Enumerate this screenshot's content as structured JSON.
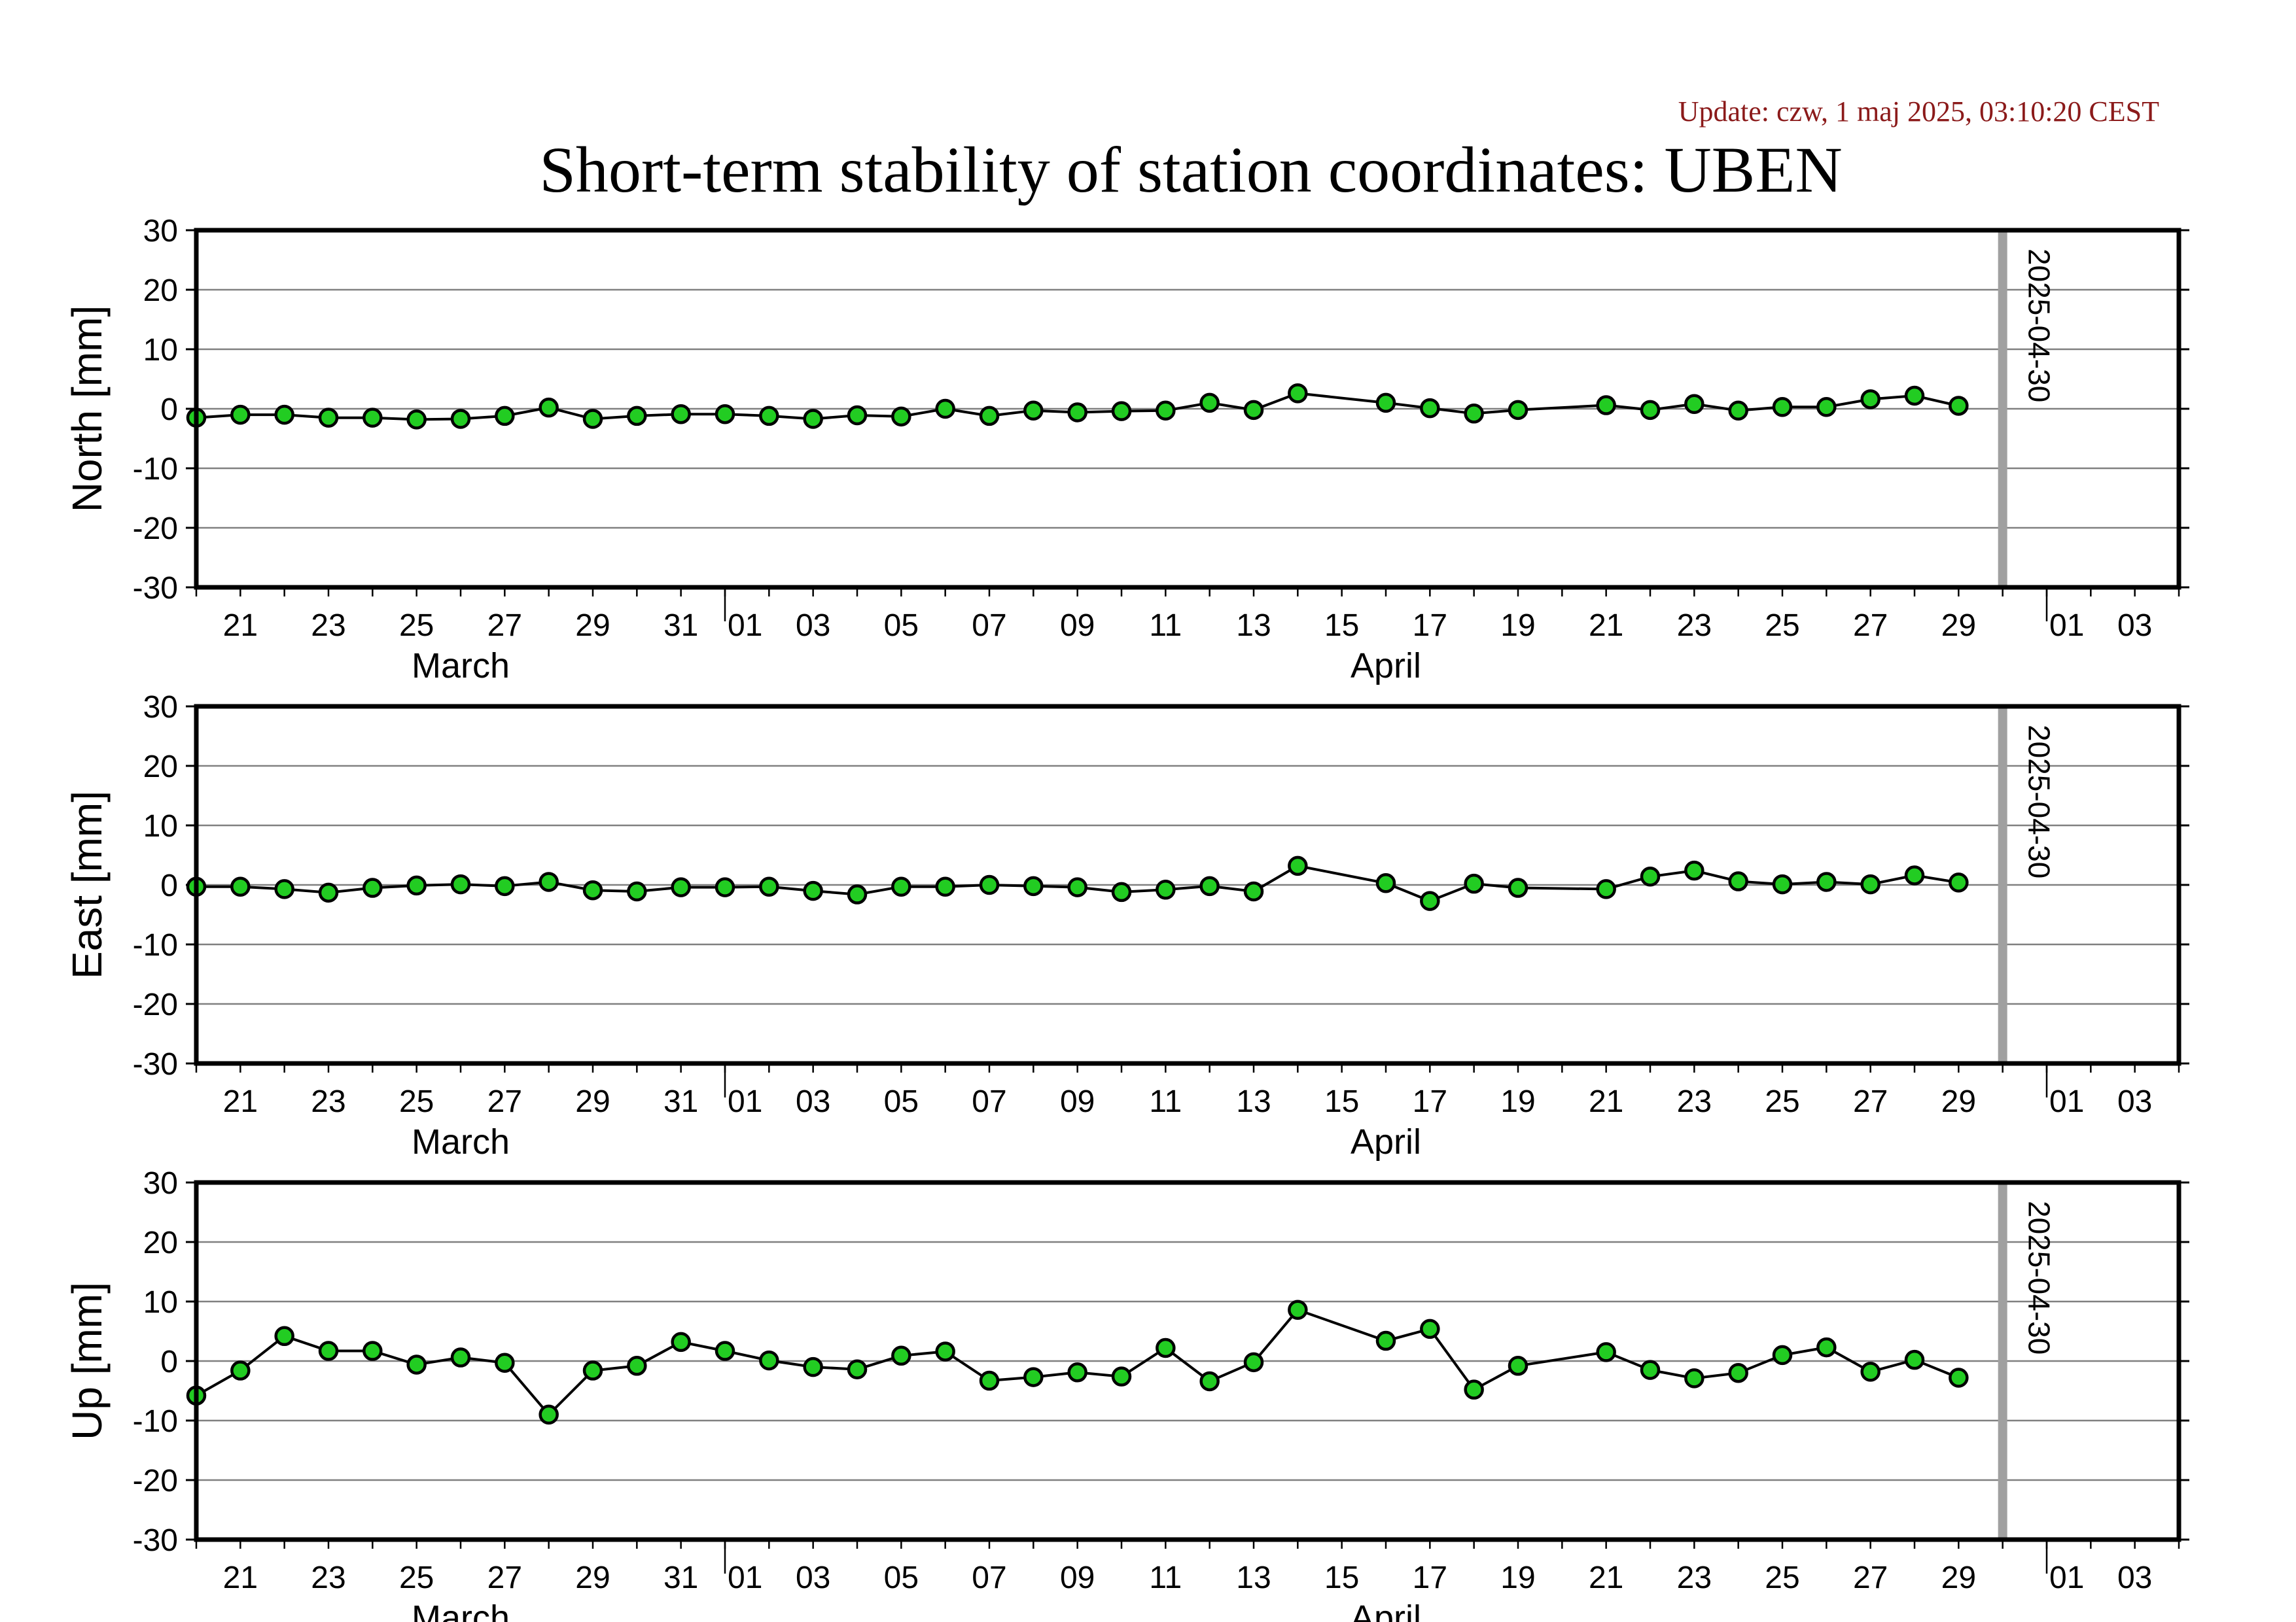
{
  "header": {
    "update_text": "Update: czw, 1 maj 2025, 03:10:20 CEST",
    "title": "Short-term stability of station coordinates: UBEN"
  },
  "colors": {
    "point_fill": "#22cc22",
    "point_stroke": "#000000",
    "line": "#000000",
    "grid": "#808080",
    "marker_line": "#a0a0a0",
    "update_text": "#8b1a1a"
  },
  "chart_data": [
    {
      "type": "line",
      "ylabel": "North [mm]",
      "ylim": [
        -30,
        30
      ],
      "yticks": [
        30,
        20,
        10,
        0,
        -10,
        -20,
        -30
      ],
      "grid": true,
      "xlim": [
        "2025-03-20",
        "2025-05-04"
      ],
      "marker": {
        "date": "2025-04-30",
        "label": "2025-04-30"
      },
      "month_labels": [
        {
          "label": "March",
          "date": "2025-03-26"
        },
        {
          "label": "April",
          "date": "2025-04-16"
        }
      ],
      "x": [
        "2025-03-20",
        "2025-03-21",
        "2025-03-22",
        "2025-03-23",
        "2025-03-24",
        "2025-03-25",
        "2025-03-26",
        "2025-03-27",
        "2025-03-28",
        "2025-03-29",
        "2025-03-30",
        "2025-03-31",
        "2025-04-01",
        "2025-04-02",
        "2025-04-03",
        "2025-04-04",
        "2025-04-05",
        "2025-04-06",
        "2025-04-07",
        "2025-04-08",
        "2025-04-09",
        "2025-04-10",
        "2025-04-11",
        "2025-04-12",
        "2025-04-13",
        "2025-04-14",
        "2025-04-16",
        "2025-04-17",
        "2025-04-18",
        "2025-04-19",
        "2025-04-21",
        "2025-04-22",
        "2025-04-23",
        "2025-04-24",
        "2025-04-25",
        "2025-04-26",
        "2025-04-27",
        "2025-04-28",
        "2025-04-29"
      ],
      "y": [
        -1.5,
        -1.0,
        -1.0,
        -1.5,
        -1.5,
        -1.8,
        -1.7,
        -1.2,
        0.2,
        -1.7,
        -1.2,
        -0.9,
        -0.9,
        -1.2,
        -1.7,
        -1.1,
        -1.3,
        0.0,
        -1.2,
        -0.3,
        -0.6,
        -0.4,
        -0.3,
        1.0,
        -0.2,
        2.6,
        1.0,
        0.1,
        -0.8,
        -0.2,
        0.6,
        -0.2,
        0.8,
        -0.3,
        0.3,
        0.3,
        1.6,
        2.2,
        0.5
      ]
    },
    {
      "type": "line",
      "ylabel": "East [mm]",
      "ylim": [
        -30,
        30
      ],
      "yticks": [
        30,
        20,
        10,
        0,
        -10,
        -20,
        -30
      ],
      "grid": true,
      "xlim": [
        "2025-03-20",
        "2025-05-04"
      ],
      "marker": {
        "date": "2025-04-30",
        "label": "2025-04-30"
      },
      "month_labels": [
        {
          "label": "March",
          "date": "2025-03-26"
        },
        {
          "label": "April",
          "date": "2025-04-16"
        }
      ],
      "x": [
        "2025-03-20",
        "2025-03-21",
        "2025-03-22",
        "2025-03-23",
        "2025-03-24",
        "2025-03-25",
        "2025-03-26",
        "2025-03-27",
        "2025-03-28",
        "2025-03-29",
        "2025-03-30",
        "2025-03-31",
        "2025-04-01",
        "2025-04-02",
        "2025-04-03",
        "2025-04-04",
        "2025-04-05",
        "2025-04-06",
        "2025-04-07",
        "2025-04-08",
        "2025-04-09",
        "2025-04-10",
        "2025-04-11",
        "2025-04-12",
        "2025-04-13",
        "2025-04-14",
        "2025-04-16",
        "2025-04-17",
        "2025-04-18",
        "2025-04-19",
        "2025-04-21",
        "2025-04-22",
        "2025-04-23",
        "2025-04-24",
        "2025-04-25",
        "2025-04-26",
        "2025-04-27",
        "2025-04-28",
        "2025-04-29"
      ],
      "y": [
        -0.3,
        -0.3,
        -0.7,
        -1.3,
        -0.5,
        -0.1,
        0.1,
        -0.2,
        0.5,
        -0.9,
        -1.1,
        -0.4,
        -0.4,
        -0.3,
        -1.0,
        -1.6,
        -0.3,
        -0.3,
        0.0,
        -0.2,
        -0.4,
        -1.2,
        -0.8,
        -0.2,
        -1.1,
        3.2,
        0.3,
        -2.7,
        0.2,
        -0.5,
        -0.7,
        1.4,
        2.4,
        0.6,
        0.1,
        0.5,
        0.1,
        1.6,
        0.4
      ]
    },
    {
      "type": "line",
      "ylabel": "Up [mm]",
      "ylim": [
        -30,
        30
      ],
      "yticks": [
        30,
        20,
        10,
        0,
        -10,
        -20,
        -30
      ],
      "grid": true,
      "xlim": [
        "2025-03-20",
        "2025-05-04"
      ],
      "marker": {
        "date": "2025-04-30",
        "label": "2025-04-30"
      },
      "month_labels": [
        {
          "label": "March",
          "date": "2025-03-26"
        },
        {
          "label": "April",
          "date": "2025-04-16"
        }
      ],
      "x": [
        "2025-03-20",
        "2025-03-21",
        "2025-03-22",
        "2025-03-23",
        "2025-03-24",
        "2025-03-25",
        "2025-03-26",
        "2025-03-27",
        "2025-03-28",
        "2025-03-29",
        "2025-03-30",
        "2025-03-31",
        "2025-04-01",
        "2025-04-02",
        "2025-04-03",
        "2025-04-04",
        "2025-04-05",
        "2025-04-06",
        "2025-04-07",
        "2025-04-08",
        "2025-04-09",
        "2025-04-10",
        "2025-04-11",
        "2025-04-12",
        "2025-04-13",
        "2025-04-14",
        "2025-04-16",
        "2025-04-17",
        "2025-04-18",
        "2025-04-19",
        "2025-04-21",
        "2025-04-22",
        "2025-04-23",
        "2025-04-24",
        "2025-04-25",
        "2025-04-26",
        "2025-04-27",
        "2025-04-28",
        "2025-04-29"
      ],
      "y": [
        -5.8,
        -1.6,
        4.2,
        1.7,
        1.7,
        -0.6,
        0.6,
        -0.3,
        -9.0,
        -1.6,
        -0.8,
        3.2,
        1.7,
        0.1,
        -1.0,
        -1.4,
        0.9,
        1.6,
        -3.3,
        -2.7,
        -1.9,
        -2.6,
        2.2,
        -3.4,
        -0.2,
        8.6,
        3.4,
        5.4,
        -4.8,
        -0.8,
        1.5,
        -1.5,
        -2.9,
        -2.0,
        1.0,
        2.3,
        -1.8,
        0.2,
        -2.8
      ]
    }
  ]
}
